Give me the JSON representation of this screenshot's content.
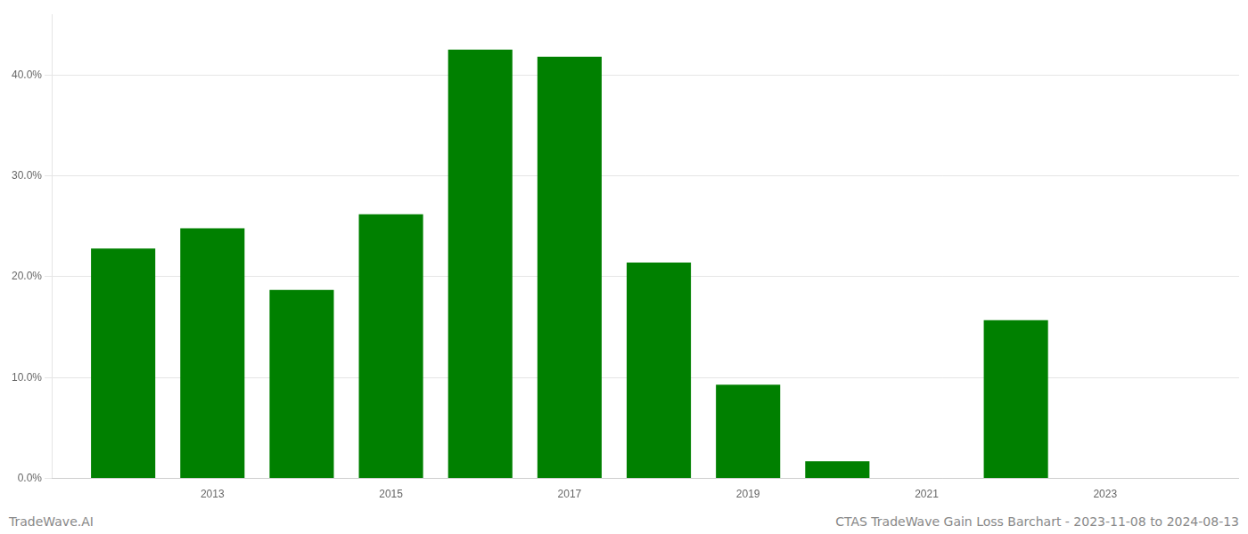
{
  "chart_data": {
    "type": "bar",
    "x": [
      2012,
      2013,
      2014,
      2015,
      2016,
      2017,
      2018,
      2019,
      2020,
      2022
    ],
    "values": [
      0.228,
      0.248,
      0.187,
      0.262,
      0.425,
      0.418,
      0.214,
      0.093,
      0.017,
      0.157
    ],
    "color": "#008000",
    "xlim": [
      2011.2,
      2024.5
    ],
    "xticks": [
      2013,
      2015,
      2017,
      2019,
      2021,
      2023
    ],
    "ylim": [
      0,
      0.46
    ],
    "yticks": [
      {
        "value": 0.0,
        "label": "0.0%"
      },
      {
        "value": 0.1,
        "label": "10.0%"
      },
      {
        "value": 0.2,
        "label": "20.0%"
      },
      {
        "value": 0.3,
        "label": "30.0%"
      },
      {
        "value": 0.4,
        "label": "40.0%"
      }
    ],
    "grid": "y",
    "annotations": [
      "TradeWave.AI",
      "CTAS TradeWave Gain Loss Barchart - 2023-11-08 to 2024-08-13"
    ]
  }
}
